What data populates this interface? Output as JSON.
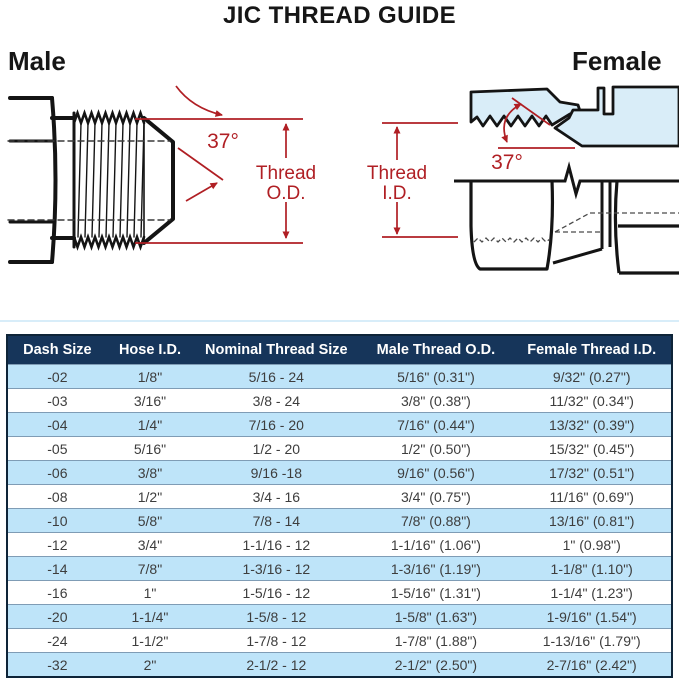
{
  "title": "JIC THREAD GUIDE",
  "diagrams": {
    "male": {
      "label": "Male",
      "angle_label": "37°",
      "dim_line1": "Thread",
      "dim_line2": "O.D."
    },
    "female": {
      "label": "Female",
      "angle_label": "37°",
      "dim_line1": "Thread",
      "dim_line2": "I.D."
    }
  },
  "table": {
    "headers": [
      "Dash Size",
      "Hose I.D.",
      "Nominal Thread Size",
      "Male Thread O.D.",
      "Female Thread I.D."
    ],
    "rows": [
      [
        "-02",
        "1/8\"",
        "5/16 - 24",
        "5/16\" (0.31\")",
        "9/32\" (0.27\")"
      ],
      [
        "-03",
        "3/16\"",
        "3/8 - 24",
        "3/8\" (0.38\")",
        "11/32\" (0.34\")"
      ],
      [
        "-04",
        "1/4\"",
        "7/16 - 20",
        "7/16\" (0.44\")",
        "13/32\" (0.39\")"
      ],
      [
        "-05",
        "5/16\"",
        "1/2 - 20",
        "1/2\" (0.50\")",
        "15/32\" (0.45\")"
      ],
      [
        "-06",
        "3/8\"",
        "9/16 -18",
        "9/16\" (0.56\")",
        "17/32\" (0.51\")"
      ],
      [
        "-08",
        "1/2\"",
        "3/4 - 16",
        "3/4\" (0.75\")",
        "11/16\" (0.69\")"
      ],
      [
        "-10",
        "5/8\"",
        "7/8 - 14",
        "7/8\" (0.88\")",
        "13/16\" (0.81\")"
      ],
      [
        "-12",
        "3/4\"",
        "1-1/16 - 12",
        "1-1/16\" (1.06\")",
        "1\" (0.98\")"
      ],
      [
        "-14",
        "7/8\"",
        "1-3/16 - 12",
        "1-3/16\" (1.19\")",
        "1-1/8\" (1.10\")"
      ],
      [
        "-16",
        "1\"",
        "1-5/16 - 12",
        "1-5/16\" (1.31\")",
        "1-1/4\" (1.23\")"
      ],
      [
        "-20",
        "1-1/4\"",
        "1-5/8 - 12",
        "1-5/8\" (1.63\")",
        "1-9/16\" (1.54\")"
      ],
      [
        "-24",
        "1-1/2\"",
        "1-7/8 - 12",
        "1-7/8\" (1.88\")",
        "1-13/16\" (1.79\")"
      ],
      [
        "-32",
        "2\"",
        "2-1/2 - 12",
        "2-1/2\" (2.50\")",
        "2-7/16\" (2.42\")"
      ]
    ]
  },
  "chart_data": {
    "type": "table",
    "title": "JIC THREAD GUIDE",
    "columns": [
      "Dash Size",
      "Hose I.D.",
      "Nominal Thread Size",
      "Male Thread O.D.",
      "Female Thread I.D."
    ],
    "rows": [
      [
        "-02",
        "1/8\"",
        "5/16 - 24",
        "5/16\" (0.31\")",
        "9/32\" (0.27\")"
      ],
      [
        "-03",
        "3/16\"",
        "3/8 - 24",
        "3/8\" (0.38\")",
        "11/32\" (0.34\")"
      ],
      [
        "-04",
        "1/4\"",
        "7/16 - 20",
        "7/16\" (0.44\")",
        "13/32\" (0.39\")"
      ],
      [
        "-05",
        "5/16\"",
        "1/2 - 20",
        "1/2\" (0.50\")",
        "15/32\" (0.45\")"
      ],
      [
        "-06",
        "3/8\"",
        "9/16 -18",
        "9/16\" (0.56\")",
        "17/32\" (0.51\")"
      ],
      [
        "-08",
        "1/2\"",
        "3/4 - 16",
        "3/4\" (0.75\")",
        "11/16\" (0.69\")"
      ],
      [
        "-10",
        "5/8\"",
        "7/8 - 14",
        "7/8\" (0.88\")",
        "13/16\" (0.81\")"
      ],
      [
        "-12",
        "3/4\"",
        "1-1/16 - 12",
        "1-1/16\" (1.06\")",
        "1\" (0.98\")"
      ],
      [
        "-14",
        "7/8\"",
        "1-3/16 - 12",
        "1-3/16\" (1.19\")",
        "1-1/8\" (1.10\")"
      ],
      [
        "-16",
        "1\"",
        "1-5/16 - 12",
        "1-5/16\" (1.31\")",
        "1-1/4\" (1.23\")"
      ],
      [
        "-20",
        "1-1/4\"",
        "1-5/8 - 12",
        "1-5/8\" (1.63\")",
        "1-9/16\" (1.54\")"
      ],
      [
        "-24",
        "1-1/2\"",
        "1-7/8 - 12",
        "1-7/8\" (1.88\")",
        "1-13/16\" (1.79\")"
      ],
      [
        "-32",
        "2\"",
        "2-1/2 - 12",
        "2-1/2\" (2.50\")",
        "2-7/16\" (2.42\")"
      ]
    ],
    "notes": "Male fitting flare angle 37°, dimension arrows mark Thread O.D.; Female fitting flare angle 37°, dimension arrows mark Thread I.D."
  },
  "colors": {
    "header_bg": "#16355a",
    "alt_row_bg": "#bee4f9",
    "row_bg": "#ffffff",
    "annotation_red": "#b01f24",
    "section_fill_blue": "#d9edf8",
    "line_black": "#141414",
    "cell_text": "#3d3d3d"
  }
}
